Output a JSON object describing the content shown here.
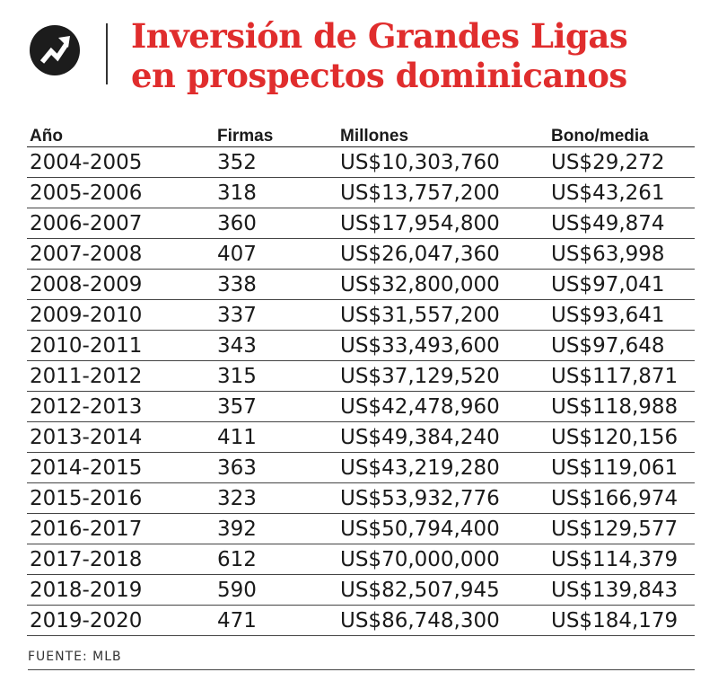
{
  "header": {
    "logo_icon": "trending-arrow-icon",
    "title_line1": "Inversión de Grandes Ligas",
    "title_line2": "en prospectos dominicanos",
    "accent_color": "#e02d2d"
  },
  "table": {
    "columns": [
      "Año",
      "Firmas",
      "Millones",
      "Bono/media"
    ],
    "rows": [
      [
        "2004-2005",
        "352",
        "US$10,303,760",
        "US$29,272"
      ],
      [
        "2005-2006",
        "318",
        "US$13,757,200",
        "US$43,261"
      ],
      [
        "2006-2007",
        "360",
        "US$17,954,800",
        "US$49,874"
      ],
      [
        "2007-2008",
        "407",
        "US$26,047,360",
        "US$63,998"
      ],
      [
        "2008-2009",
        "338",
        "US$32,800,000",
        "US$97,041"
      ],
      [
        "2009-2010",
        "337",
        "US$31,557,200",
        "US$93,641"
      ],
      [
        "2010-2011",
        "343",
        "US$33,493,600",
        "US$97,648"
      ],
      [
        "2011-2012",
        "315",
        "US$37,129,520",
        "US$117,871"
      ],
      [
        "2012-2013",
        "357",
        "US$42,478,960",
        "US$118,988"
      ],
      [
        "2013-2014",
        "411",
        "US$49,384,240",
        "US$120,156"
      ],
      [
        "2014-2015",
        "363",
        "US$43,219,280",
        "US$119,061"
      ],
      [
        "2015-2016",
        "323",
        "US$53,932,776",
        "US$166,974"
      ],
      [
        "2016-2017",
        "392",
        "US$50,794,400",
        "US$129,577"
      ],
      [
        "2017-2018",
        "612",
        "US$70,000,000",
        "US$114,379"
      ],
      [
        "2018-2019",
        "590",
        "US$82,507,945",
        "US$139,843"
      ],
      [
        "2019-2020",
        "471",
        "US$86,748,300",
        "US$184,179"
      ]
    ]
  },
  "footer": {
    "source": "FUENTE: MLB"
  }
}
